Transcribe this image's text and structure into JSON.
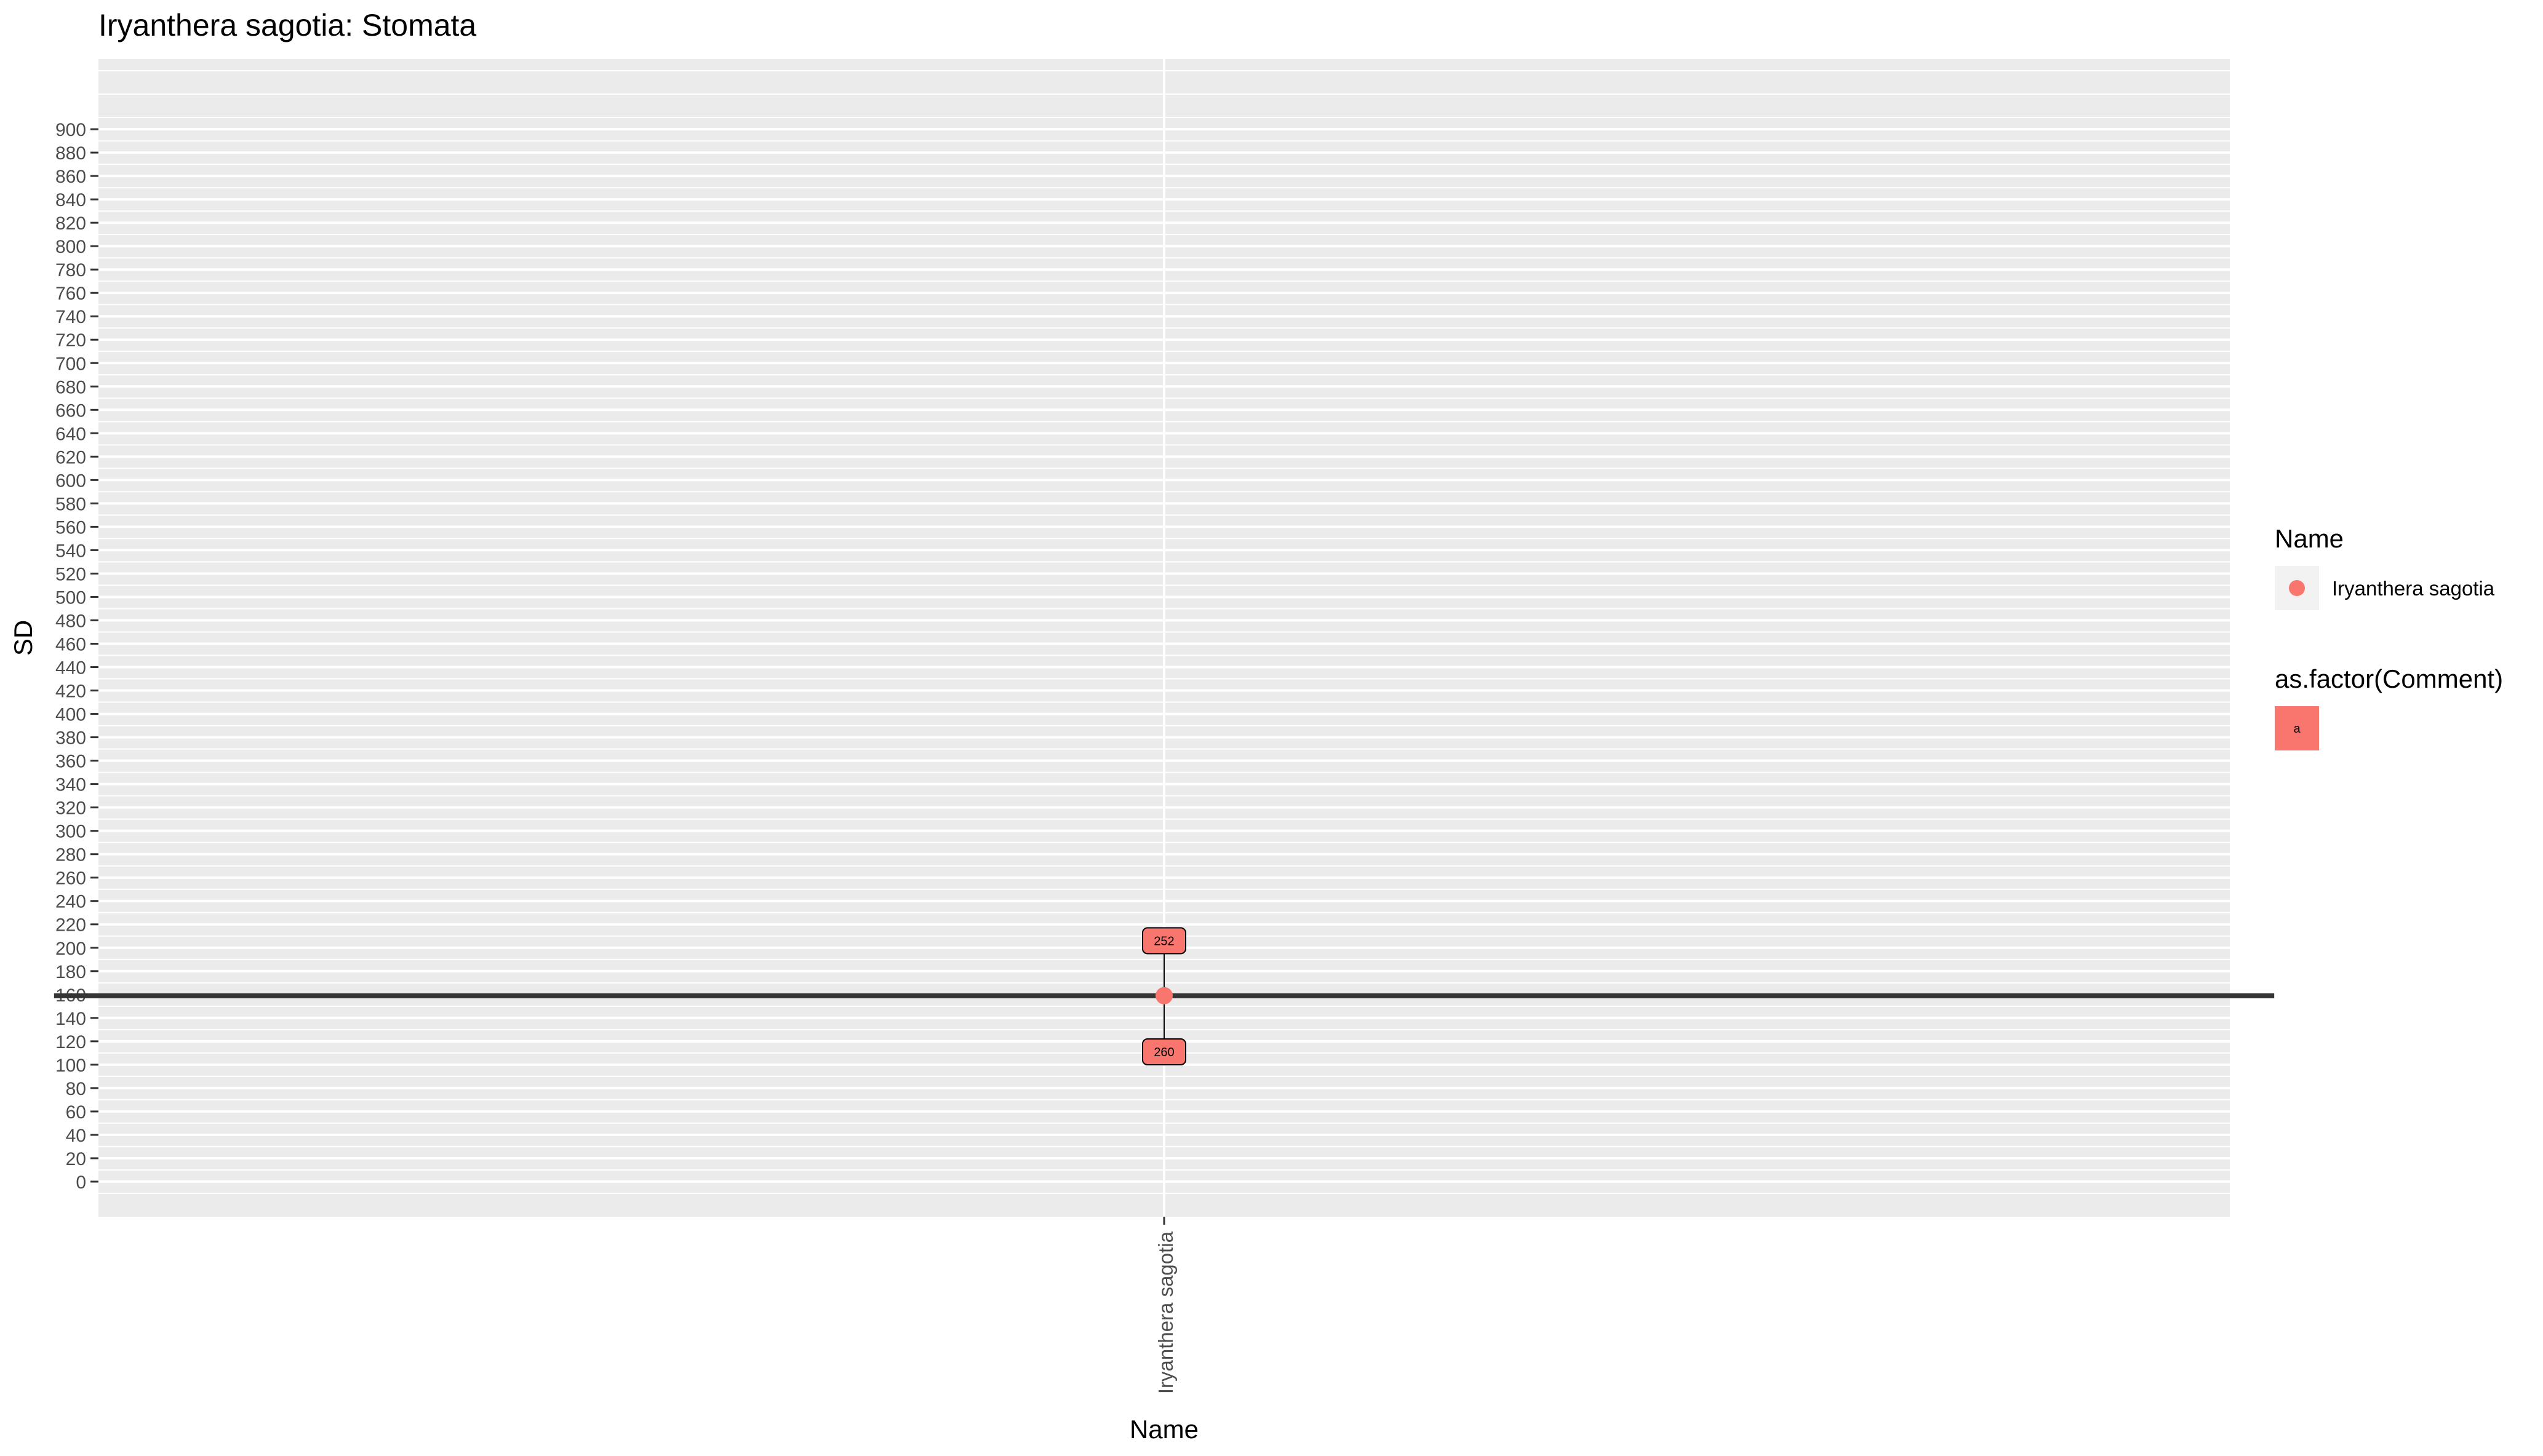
{
  "chart_data": {
    "type": "scatter",
    "title": "Iryanthera sagotia: Stomata",
    "xlabel": "Name",
    "ylabel": "SD",
    "categories": [
      "Iryanthera sagotia"
    ],
    "ylim": [
      -30,
      960
    ],
    "y_ticks": [
      0,
      20,
      40,
      60,
      80,
      100,
      120,
      140,
      160,
      180,
      200,
      220,
      240,
      260,
      280,
      300,
      320,
      340,
      360,
      380,
      400,
      420,
      440,
      460,
      480,
      500,
      520,
      540,
      560,
      580,
      600,
      620,
      640,
      660,
      680,
      700,
      720,
      740,
      760,
      780,
      800,
      820,
      840,
      860,
      880,
      900
    ],
    "points": [
      {
        "name": "Iryanthera sagotia",
        "y": 159
      }
    ],
    "mean_line": {
      "y": 159,
      "from": 0.375,
      "to": 1.625
    },
    "label_boxes": [
      {
        "text": "252",
        "y": 206,
        "comment": "a"
      },
      {
        "text": "260",
        "y": 111,
        "comment": "a"
      }
    ],
    "colors": {
      "point": "#F8766D",
      "label_fill": "#F8766D",
      "panel_bg": "#EBEBEB",
      "grid": "#FFFFFF",
      "mean_line": "#333333",
      "legend_key_bg": "#F2F2F2"
    },
    "legend": {
      "position": "right",
      "groups": [
        {
          "title": "Name",
          "key_type": "point",
          "items": [
            {
              "label": "Iryanthera sagotia",
              "color": "#F8766D"
            }
          ]
        },
        {
          "title": "as.factor(Comment)",
          "key_type": "label",
          "items": [
            {
              "label": "a",
              "color": "#F8766D"
            }
          ]
        }
      ]
    }
  }
}
